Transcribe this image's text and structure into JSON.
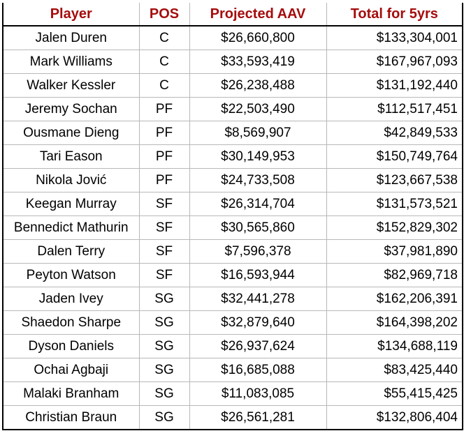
{
  "header_color": "#a50c0c",
  "headers": [
    "Player",
    "POS",
    "Projected AAV",
    "Total for 5yrs"
  ],
  "rows": [
    [
      "Jalen Duren",
      "C",
      "$26,660,800",
      "$133,304,001"
    ],
    [
      "Mark Williams",
      "C",
      "$33,593,419",
      "$167,967,093"
    ],
    [
      "Walker Kessler",
      "C",
      "$26,238,488",
      "$131,192,440"
    ],
    [
      "Jeremy Sochan",
      "PF",
      "$22,503,490",
      "$112,517,451"
    ],
    [
      "Ousmane Dieng",
      "PF",
      "$8,569,907",
      "$42,849,533"
    ],
    [
      "Tari Eason",
      "PF",
      "$30,149,953",
      "$150,749,764"
    ],
    [
      "Nikola Jović",
      "PF",
      "$24,733,508",
      "$123,667,538"
    ],
    [
      "Keegan Murray",
      "SF",
      "$26,314,704",
      "$131,573,521"
    ],
    [
      "Bennedict Mathurin",
      "SF",
      "$30,565,860",
      "$152,829,302"
    ],
    [
      "Dalen Terry",
      "SF",
      "$7,596,378",
      "$37,981,890"
    ],
    [
      "Peyton Watson",
      "SF",
      "$16,593,944",
      "$82,969,718"
    ],
    [
      "Jaden Ivey",
      "SG",
      "$32,441,278",
      "$162,206,391"
    ],
    [
      "Shaedon Sharpe",
      "SG",
      "$32,879,640",
      "$164,398,202"
    ],
    [
      "Dyson Daniels",
      "SG",
      "$26,937,624",
      "$134,688,119"
    ],
    [
      "Ochai Agbaji",
      "SG",
      "$16,685,088",
      "$83,425,440"
    ],
    [
      "Malaki Branham",
      "SG",
      "$11,083,085",
      "$55,415,425"
    ],
    [
      "Christian Braun",
      "SG",
      "$26,561,281",
      "$132,806,404"
    ]
  ]
}
